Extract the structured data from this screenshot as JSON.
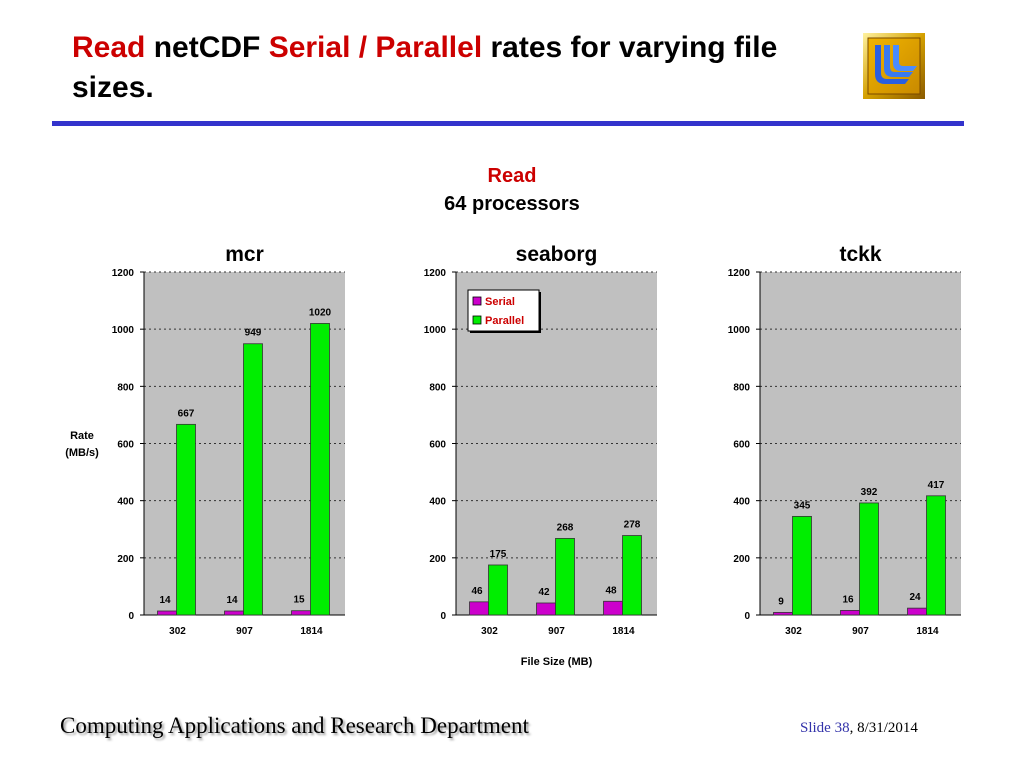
{
  "slide": {
    "title_parts": [
      {
        "text": "Read",
        "color": "red"
      },
      {
        "text": " netCDF ",
        "color": "black"
      },
      {
        "text": "Serial / Parallel",
        "color": "red"
      },
      {
        "text": " rates for varying file sizes.",
        "color": "black"
      }
    ],
    "logo": "llnl-logo-icon",
    "heading_line1": "Read",
    "heading_line2": "64 processors",
    "footer_left": "Computing Applications and Research Department",
    "footer_slide": "Slide 38",
    "footer_date": ", 8/31/2014"
  },
  "colors": {
    "serial": "#cc00cc",
    "parallel": "#00ee00",
    "plot_bg": "#c0c0c0",
    "title_red": "#cc0000",
    "rule_blue": "#3333cc"
  },
  "chart_data": [
    {
      "type": "bar",
      "title": "mcr",
      "categories": [
        "302",
        "907",
        "1814"
      ],
      "series": [
        {
          "name": "Serial",
          "values": [
            14,
            14,
            15
          ]
        },
        {
          "name": "Parallel",
          "values": [
            667,
            949,
            1020
          ]
        }
      ],
      "xlabel": "",
      "ylabel": "Rate (MB/s)",
      "ylim": [
        0,
        1200
      ],
      "yticks": [
        0,
        200,
        400,
        600,
        800,
        1000,
        1200
      ],
      "grid": true,
      "legend": null
    },
    {
      "type": "bar",
      "title": "seaborg",
      "categories": [
        "302",
        "907",
        "1814"
      ],
      "series": [
        {
          "name": "Serial",
          "values": [
            46,
            42,
            48
          ]
        },
        {
          "name": "Parallel",
          "values": [
            175,
            268,
            278
          ]
        }
      ],
      "xlabel": "File Size (MB)",
      "ylabel": "",
      "ylim": [
        0,
        1200
      ],
      "yticks": [
        0,
        200,
        400,
        600,
        800,
        1000,
        1200
      ],
      "grid": true,
      "legend": "top-left"
    },
    {
      "type": "bar",
      "title": "tckk",
      "categories": [
        "302",
        "907",
        "1814"
      ],
      "series": [
        {
          "name": "Serial",
          "values": [
            9,
            16,
            24
          ]
        },
        {
          "name": "Parallel",
          "values": [
            345,
            392,
            417
          ]
        }
      ],
      "xlabel": "",
      "ylabel": "",
      "ylim": [
        0,
        1200
      ],
      "yticks": [
        0,
        200,
        400,
        600,
        800,
        1000,
        1200
      ],
      "grid": true,
      "legend": null
    }
  ]
}
